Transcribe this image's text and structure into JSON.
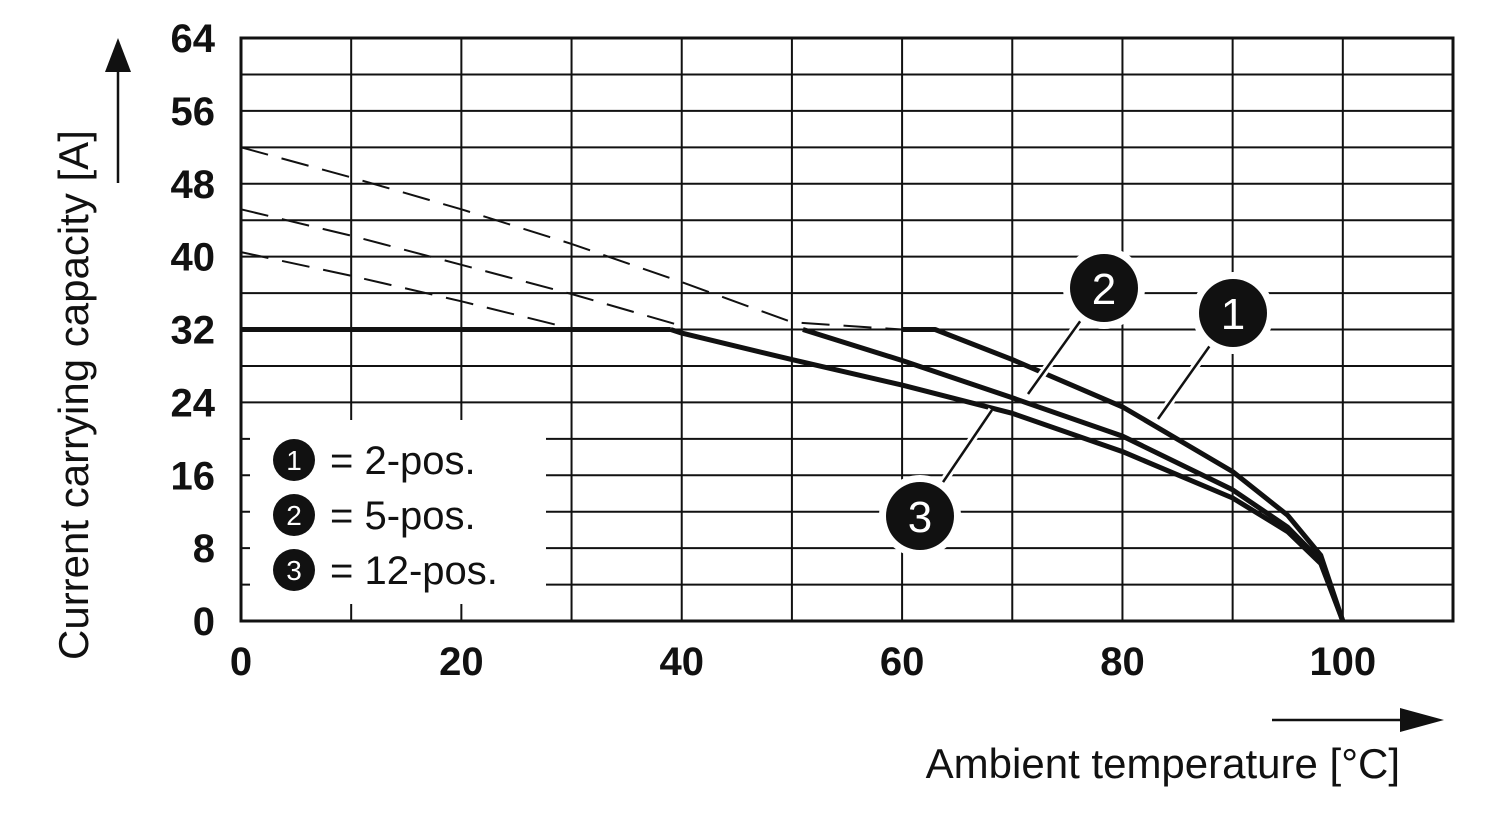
{
  "chart_data": {
    "type": "line",
    "title": "",
    "xlabel": "Ambient temperature [°C]",
    "ylabel": "Current carrying capacity [A]",
    "xlim": [
      0,
      110
    ],
    "ylim": [
      0,
      64
    ],
    "x_ticks": [
      "0",
      "20",
      "40",
      "60",
      "80",
      "100"
    ],
    "y_ticks": [
      "0",
      "8",
      "16",
      "24",
      "32",
      "40",
      "48",
      "56",
      "64"
    ],
    "grid": true,
    "rated_current_cap": 32,
    "legend_placement": "bottom-left",
    "legend": [
      {
        "number": "1",
        "text": "= 2-pos."
      },
      {
        "number": "2",
        "text": "= 5-pos."
      },
      {
        "number": "3",
        "text": "= 12-pos."
      }
    ],
    "series": [
      {
        "label": "1",
        "x": [
          0,
          10,
          20,
          30,
          40,
          50,
          60,
          63,
          70,
          80,
          90,
          95,
          98,
          100
        ],
        "y": [
          52,
          48.7,
          45.2,
          41.4,
          37.2,
          32.8,
          32,
          32,
          28.7,
          23.5,
          16.4,
          11.6,
          7.2,
          0
        ]
      },
      {
        "label": "2",
        "x": [
          0,
          10,
          20,
          30,
          40,
          50,
          51,
          60,
          70,
          80,
          90,
          95,
          98,
          100
        ],
        "y": [
          45.2,
          42.3,
          39.1,
          35.9,
          32.4,
          32.1,
          32,
          28.6,
          24.5,
          20.3,
          14.4,
          10.3,
          6.6,
          0
        ]
      },
      {
        "label": "3",
        "x": [
          0,
          10,
          20,
          30,
          39,
          40,
          50,
          60,
          70,
          80,
          90,
          95,
          98,
          100
        ],
        "y": [
          40.5,
          37.9,
          35.1,
          32.1,
          32,
          31.6,
          28.7,
          25.9,
          22.8,
          18.6,
          13.5,
          9.8,
          6.3,
          0
        ]
      }
    ]
  }
}
